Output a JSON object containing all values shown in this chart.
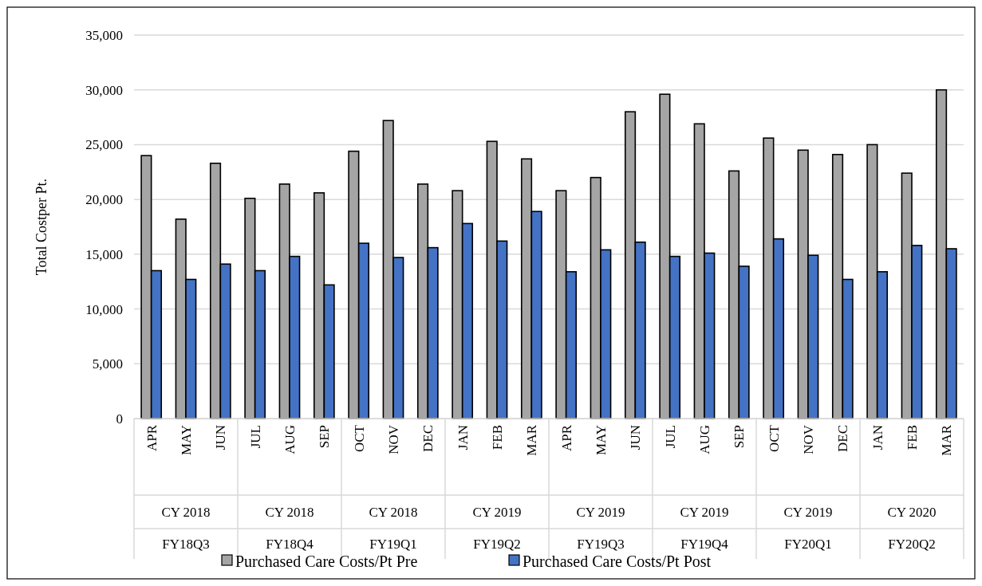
{
  "chart_data": {
    "type": "bar",
    "ylabel": "Total Costper Pt.",
    "categories": [
      "APR",
      "MAY",
      "JUN",
      "JUL",
      "AUG",
      "SEP",
      "OCT",
      "NOV",
      "DEC",
      "JAN",
      "FEB",
      "MAR",
      "APR",
      "MAY",
      "JUN",
      "JUL",
      "AUG",
      "SEP",
      "OCT",
      "NOV",
      "DEC",
      "JAN",
      "FEB",
      "MAR"
    ],
    "series": [
      {
        "name": "Purchased Care Costs/Pt Pre",
        "color": "#a5a5a5",
        "values": [
          24000,
          18200,
          23300,
          20100,
          21400,
          20600,
          24400,
          27200,
          21400,
          20800,
          25300,
          23700,
          20800,
          22000,
          28000,
          29600,
          26900,
          22600,
          25600,
          24500,
          24100,
          25000,
          22400,
          30000
        ]
      },
      {
        "name": "Purchased Care Costs/Pt Post",
        "color": "#4472c4",
        "values": [
          13500,
          12700,
          14100,
          13500,
          14800,
          12200,
          16000,
          14700,
          15600,
          17800,
          16200,
          18900,
          13400,
          15400,
          16100,
          14800,
          15100,
          13900,
          16400,
          14900,
          12700,
          13400,
          15800,
          15500
        ]
      }
    ],
    "ylim": [
      0,
      35000
    ],
    "yticks": [
      {
        "value": 0,
        "label": "0"
      },
      {
        "value": 5000,
        "label": "5,000"
      },
      {
        "value": 10000,
        "label": "10,000"
      },
      {
        "value": 15000,
        "label": "15,000"
      },
      {
        "value": 20000,
        "label": "20,000"
      },
      {
        "value": 25000,
        "label": "25,000"
      },
      {
        "value": 30000,
        "label": "30,000"
      },
      {
        "value": 35000,
        "label": "35,000"
      }
    ],
    "grid": "y",
    "legend": "bottom",
    "annotations": [
      "CY 2018",
      "CY 2018",
      "CY 2018",
      "CY 2019",
      "CY 2019",
      "CY 2019",
      "CY 2019",
      "CY 2020",
      "FY18Q3",
      "FY18Q4",
      "FY19Q1",
      "FY19Q2",
      "FY19Q3",
      "FY19Q4",
      "FY20Q1",
      "FY20Q2"
    ]
  }
}
